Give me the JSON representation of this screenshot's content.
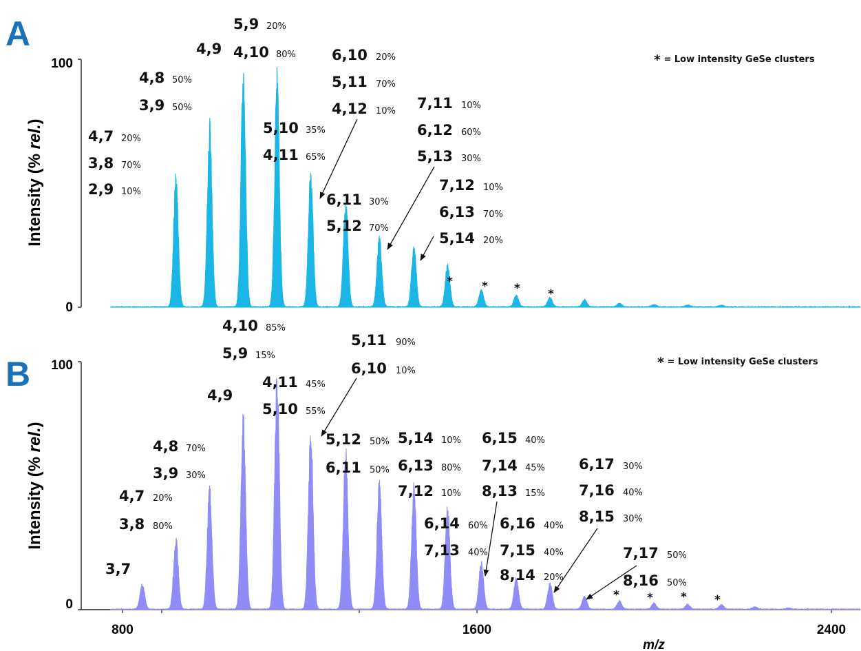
{
  "chart_data": [
    {
      "panel": "A",
      "type": "line",
      "color": "#1cb6e6",
      "ylabel_parts": [
        "Intensity (% ",
        "rel.",
        ")"
      ],
      "y_ticks": [
        "100",
        "0"
      ],
      "ylim": [
        0,
        100
      ],
      "xlim": [
        600,
        2450
      ],
      "legend": "* = Low intensity GeSe clusters",
      "legend_symbol": "*",
      "legend_text": " = Low intensity GeSe clusters",
      "peaks": [
        {
          "x": 825,
          "y": 56
        },
        {
          "x": 905,
          "y": 77
        },
        {
          "x": 985,
          "y": 100
        },
        {
          "x": 1065,
          "y": 98
        },
        {
          "x": 1145,
          "y": 57
        },
        {
          "x": 1228,
          "y": 45
        },
        {
          "x": 1308,
          "y": 30
        },
        {
          "x": 1390,
          "y": 26
        },
        {
          "x": 1470,
          "y": 18
        },
        {
          "x": 1550,
          "y": 7
        },
        {
          "x": 1633,
          "y": 5
        },
        {
          "x": 1713,
          "y": 4
        },
        {
          "x": 1795,
          "y": 3
        },
        {
          "x": 1878,
          "y": 1.5
        },
        {
          "x": 1960,
          "y": 1
        },
        {
          "x": 2040,
          "y": 0.8
        },
        {
          "x": 2120,
          "y": 0.6
        }
      ],
      "labels": [
        {
          "main": "4,7",
          "pct": "20%"
        },
        {
          "main": "3,8",
          "pct": "70%"
        },
        {
          "main": "2,9",
          "pct": "10%"
        },
        {
          "main": "4,8",
          "pct": "50%"
        },
        {
          "main": "3,9",
          "pct": "50%"
        },
        {
          "main": "4,9",
          "pct": ""
        },
        {
          "main": "5,9",
          "pct": "20%"
        },
        {
          "main": "4,10",
          "pct": "80%"
        },
        {
          "main": "5,10",
          "pct": "35%"
        },
        {
          "main": "4,11",
          "pct": "65%"
        },
        {
          "main": "6,10",
          "pct": "20%"
        },
        {
          "main": "5,11",
          "pct": "70%"
        },
        {
          "main": "4,12",
          "pct": "10%"
        },
        {
          "main": "6,11",
          "pct": "30%"
        },
        {
          "main": "5,12",
          "pct": "70%"
        },
        {
          "main": "7,11",
          "pct": "10%"
        },
        {
          "main": "6,12",
          "pct": "60%"
        },
        {
          "main": "5,13",
          "pct": "30%"
        },
        {
          "main": "7,12",
          "pct": "10%"
        },
        {
          "main": "6,13",
          "pct": "70%"
        },
        {
          "main": "5,14",
          "pct": "20%"
        }
      ],
      "stars": [
        "*",
        "*",
        "*",
        "*"
      ]
    },
    {
      "panel": "B",
      "type": "line",
      "color": "#8f8cf7",
      "ylabel_parts": [
        "Intensity (% ",
        "rel.",
        ")"
      ],
      "y_ticks": [
        "100",
        "0"
      ],
      "ylim": [
        0,
        100
      ],
      "xlim": [
        600,
        2450
      ],
      "x_ticks": [
        "800",
        "1600",
        "2400"
      ],
      "xlabel": "m/z",
      "legend": "* = Low intensity GeSe clusters",
      "legend_symbol": "*",
      "legend_text": " = Low intensity GeSe clusters",
      "peaks": [
        {
          "x": 745,
          "y": 11
        },
        {
          "x": 825,
          "y": 30
        },
        {
          "x": 905,
          "y": 52
        },
        {
          "x": 985,
          "y": 81
        },
        {
          "x": 1065,
          "y": 100
        },
        {
          "x": 1145,
          "y": 77
        },
        {
          "x": 1228,
          "y": 68
        },
        {
          "x": 1308,
          "y": 54
        },
        {
          "x": 1390,
          "y": 52
        },
        {
          "x": 1470,
          "y": 43
        },
        {
          "x": 1550,
          "y": 20
        },
        {
          "x": 1633,
          "y": 13
        },
        {
          "x": 1713,
          "y": 11
        },
        {
          "x": 1795,
          "y": 5.5
        },
        {
          "x": 1878,
          "y": 3.5
        },
        {
          "x": 1960,
          "y": 2.5
        },
        {
          "x": 2040,
          "y": 2
        },
        {
          "x": 2120,
          "y": 2
        },
        {
          "x": 2200,
          "y": 1
        },
        {
          "x": 2280,
          "y": 0.5
        }
      ],
      "labels": [
        {
          "main": "3,7",
          "pct": ""
        },
        {
          "main": "4,7",
          "pct": "20%"
        },
        {
          "main": "3,8",
          "pct": "80%"
        },
        {
          "main": "4,8",
          "pct": "70%"
        },
        {
          "main": "3,9",
          "pct": "30%"
        },
        {
          "main": "4,9",
          "pct": ""
        },
        {
          "main": "4,10",
          "pct": "85%"
        },
        {
          "main": "5,9",
          "pct": "15%"
        },
        {
          "main": "4,11",
          "pct": "45%"
        },
        {
          "main": "5,10",
          "pct": "55%"
        },
        {
          "main": "5,11",
          "pct": "90%"
        },
        {
          "main": "6,10",
          "pct": "10%"
        },
        {
          "main": "5,12",
          "pct": "50%"
        },
        {
          "main": "6,11",
          "pct": "50%"
        },
        {
          "main": "5,14",
          "pct": "10%"
        },
        {
          "main": "6,13",
          "pct": "80%"
        },
        {
          "main": "7,12",
          "pct": "10%"
        },
        {
          "main": "6,14",
          "pct": "60%"
        },
        {
          "main": "7,13",
          "pct": "40%"
        },
        {
          "main": "6,15",
          "pct": "40%"
        },
        {
          "main": "7,14",
          "pct": "45%"
        },
        {
          "main": "8,13",
          "pct": "15%"
        },
        {
          "main": "6,16",
          "pct": "40%"
        },
        {
          "main": "7,15",
          "pct": "40%"
        },
        {
          "main": "8,14",
          "pct": "20%"
        },
        {
          "main": "6,17",
          "pct": "30%"
        },
        {
          "main": "7,16",
          "pct": "40%"
        },
        {
          "main": "8,15",
          "pct": "30%"
        },
        {
          "main": "7,17",
          "pct": "50%"
        },
        {
          "main": "8,16",
          "pct": "50%"
        }
      ],
      "stars": [
        "*",
        "*",
        "*",
        "*"
      ]
    }
  ]
}
